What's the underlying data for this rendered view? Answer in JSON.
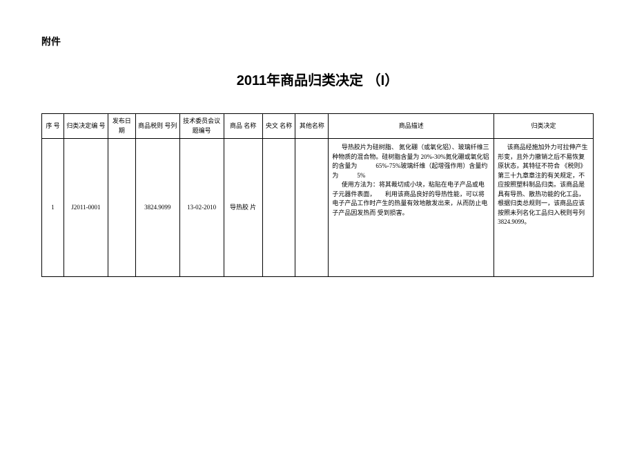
{
  "attachment_label": "附件",
  "title": "2011年商品归类决定 （I）",
  "columns": {
    "c0": "序 号",
    "c1": "归类决定编 号",
    "c2": "发布日期",
    "c3": "商品税则 号列",
    "c4": "技术委员会议题编号",
    "c5": "商品 名称",
    "c6": "央文 名称",
    "c7": "其他名称",
    "c8": "商品描述",
    "c9": "归类决定"
  },
  "col_widths": {
    "c0": "4%",
    "c1": "8%",
    "c2": "5%",
    "c3": "8%",
    "c4": "8%",
    "c5": "7%",
    "c6": "6%",
    "c7": "6%",
    "c8": "30%",
    "c9": "18%"
  },
  "row": {
    "seq": "1",
    "decision_no": "J2011-0001",
    "pub_date": "",
    "tariff_no": "3824.9099",
    "agenda_no": "13-02-2010",
    "product_name": "导热胶 片",
    "cn_name": "",
    "other_name": "",
    "desc_p1": "导热胶片为硅树脂、 氮化硼（或氧化铝）、玻璃纤维三种物质的混合物。硅树脂含量为 20%-30%氮化硼或氧化铝的含量为　　　65%-75%玻璃纤维（起增强作用）含量约为　　　5%",
    "desc_p2": "使用方法为：将其裁切成小块，粘贴在电子产品或电子元器件表面，　　利用该商品良好的导热性能，可以将电子产品工作时产生的热量有效地散发出来，从而防止电子产品因发热而 受到损害。",
    "decision": "该商品经施加外力可拉伸产生形变，且外力撤销之后不易恢复原状态，其特征不符合 《税则》第三十九章章注的有关规定，不应按照塑料制品归类。该商品是具有导热、散热功能的化工品，根据归类总规则一，该商品应该按照未列名化工品归入税则号列3824.9099。"
  }
}
